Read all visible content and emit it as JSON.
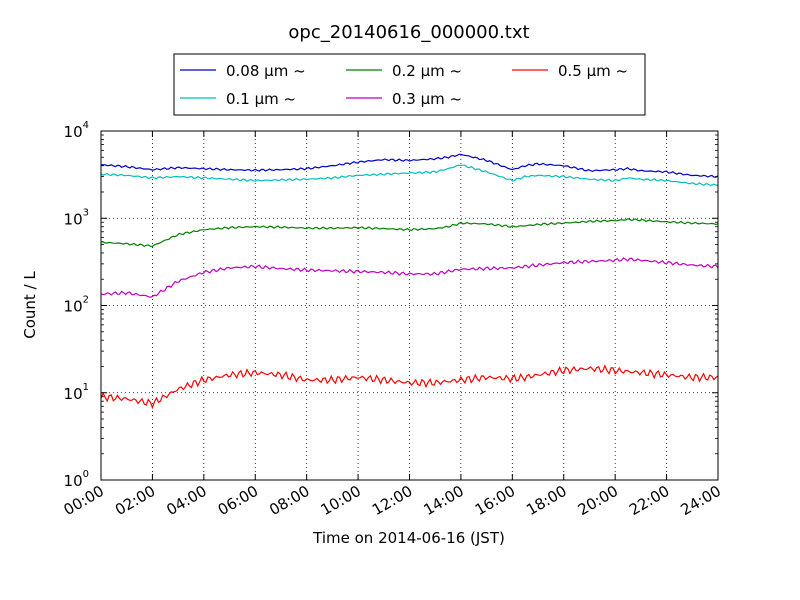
{
  "chart_data": {
    "type": "line",
    "title": "opc_20140616_000000.txt",
    "xlabel": "Time on 2014-06-16 (JST)",
    "ylabel": "Count / L",
    "y_scale": "log",
    "ylim": [
      1,
      10000
    ],
    "xlim": [
      "00:00",
      "24:00"
    ],
    "x_ticks": [
      "00:00",
      "02:00",
      "04:00",
      "06:00",
      "08:00",
      "10:00",
      "12:00",
      "14:00",
      "16:00",
      "18:00",
      "20:00",
      "22:00",
      "24:00"
    ],
    "y_ticks": [
      {
        "value": 1,
        "base": "10",
        "exp": "0"
      },
      {
        "value": 10,
        "base": "10",
        "exp": "1"
      },
      {
        "value": 100,
        "base": "10",
        "exp": "2"
      },
      {
        "value": 1000,
        "base": "10",
        "exp": "3"
      },
      {
        "value": 10000,
        "base": "10",
        "exp": "4"
      }
    ],
    "grid": true,
    "legend_position": "top-center",
    "x": [
      "00:00",
      "01:00",
      "02:00",
      "03:00",
      "04:00",
      "05:00",
      "06:00",
      "07:00",
      "08:00",
      "09:00",
      "10:00",
      "11:00",
      "12:00",
      "13:00",
      "13:30",
      "14:00",
      "15:00",
      "16:00",
      "16:30",
      "17:00",
      "18:00",
      "19:00",
      "20:00",
      "20:30",
      "21:00",
      "22:00",
      "23:00",
      "24:00"
    ],
    "series": [
      {
        "name": "0.08 μm ~",
        "color": "#0000cc",
        "values": [
          4100,
          3900,
          3600,
          3800,
          3700,
          3600,
          3550,
          3600,
          3700,
          4000,
          4400,
          4700,
          4600,
          4800,
          5000,
          5400,
          4600,
          3600,
          4000,
          4200,
          4000,
          3500,
          3600,
          3700,
          3500,
          3400,
          3100,
          3000
        ]
      },
      {
        "name": "0.1 μm ~",
        "color": "#00bfbf",
        "values": [
          3200,
          3100,
          2900,
          3000,
          2900,
          2800,
          2700,
          2750,
          2800,
          2900,
          3100,
          3200,
          3300,
          3400,
          3700,
          4100,
          3400,
          2700,
          3000,
          3100,
          3000,
          2800,
          2700,
          2900,
          2800,
          2700,
          2500,
          2400
        ]
      },
      {
        "name": "0.2 μm ~",
        "color": "#008000",
        "values": [
          530,
          510,
          480,
          650,
          740,
          780,
          800,
          790,
          770,
          770,
          780,
          760,
          740,
          760,
          800,
          880,
          860,
          800,
          820,
          850,
          880,
          920,
          940,
          970,
          950,
          910,
          880,
          860
        ]
      },
      {
        "name": "0.3 μm ~",
        "color": "#bf00bf",
        "values": [
          135,
          140,
          125,
          190,
          240,
          270,
          280,
          265,
          255,
          250,
          245,
          240,
          230,
          230,
          245,
          260,
          265,
          270,
          280,
          290,
          310,
          320,
          330,
          340,
          330,
          310,
          290,
          280
        ]
      },
      {
        "name": "0.5 μm ~",
        "color": "#ff0000",
        "values": [
          9,
          8.5,
          7.5,
          11,
          14,
          16,
          17,
          16,
          14,
          14,
          15,
          14,
          13,
          13,
          13.5,
          14,
          15,
          14.5,
          15,
          16,
          18,
          19,
          18,
          17.5,
          17,
          16,
          15,
          15
        ]
      }
    ]
  }
}
